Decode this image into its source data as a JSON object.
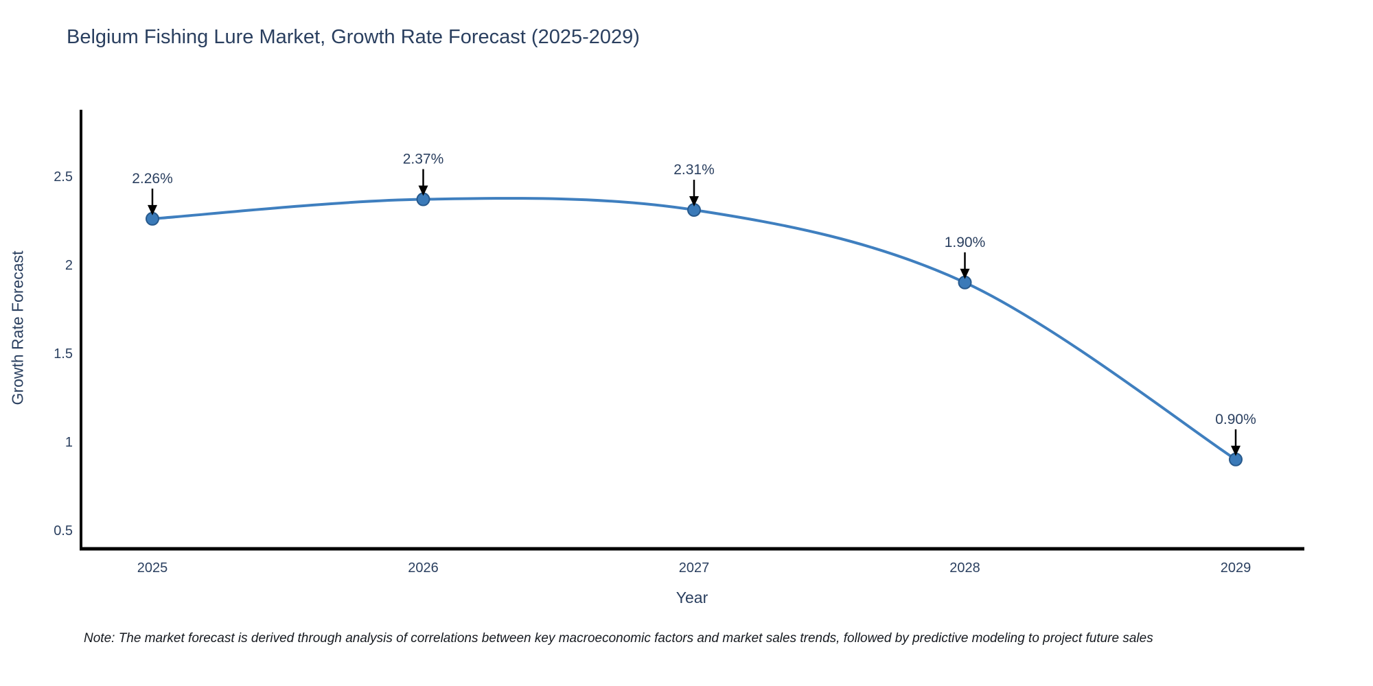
{
  "title": "Belgium Fishing Lure Market, Growth Rate Forecast (2025-2029)",
  "note": "Note: The market forecast is derived through analysis of correlations between key macroeconomic factors and market sales trends, followed by predictive modeling to project future sales",
  "chart_data": {
    "type": "line",
    "title": "Belgium Fishing Lure Market, Growth Rate Forecast (2025-2029)",
    "xlabel": "Year",
    "ylabel": "Growth Rate Forecast",
    "x": [
      2025,
      2026,
      2027,
      2028,
      2029
    ],
    "values": [
      2.26,
      2.37,
      2.31,
      1.9,
      0.9
    ],
    "point_labels": [
      "2.26%",
      "2.37%",
      "2.31%",
      "1.90%",
      "0.90%"
    ],
    "yticks": [
      0.5,
      1,
      1.5,
      2,
      2.5
    ],
    "ylim": [
      0.39,
      2.88
    ],
    "xlim": [
      2024.74,
      2029.25
    ],
    "grid": false,
    "legend": "none",
    "line_smoothing": "spline",
    "colors": {
      "line": "#3f7fbf",
      "marker_fill": "#3b7ab8",
      "marker_edge": "#27598c",
      "arrow": "#000000",
      "text": "#2a3f5f",
      "axis": "#000000",
      "background": "#ffffff"
    }
  }
}
